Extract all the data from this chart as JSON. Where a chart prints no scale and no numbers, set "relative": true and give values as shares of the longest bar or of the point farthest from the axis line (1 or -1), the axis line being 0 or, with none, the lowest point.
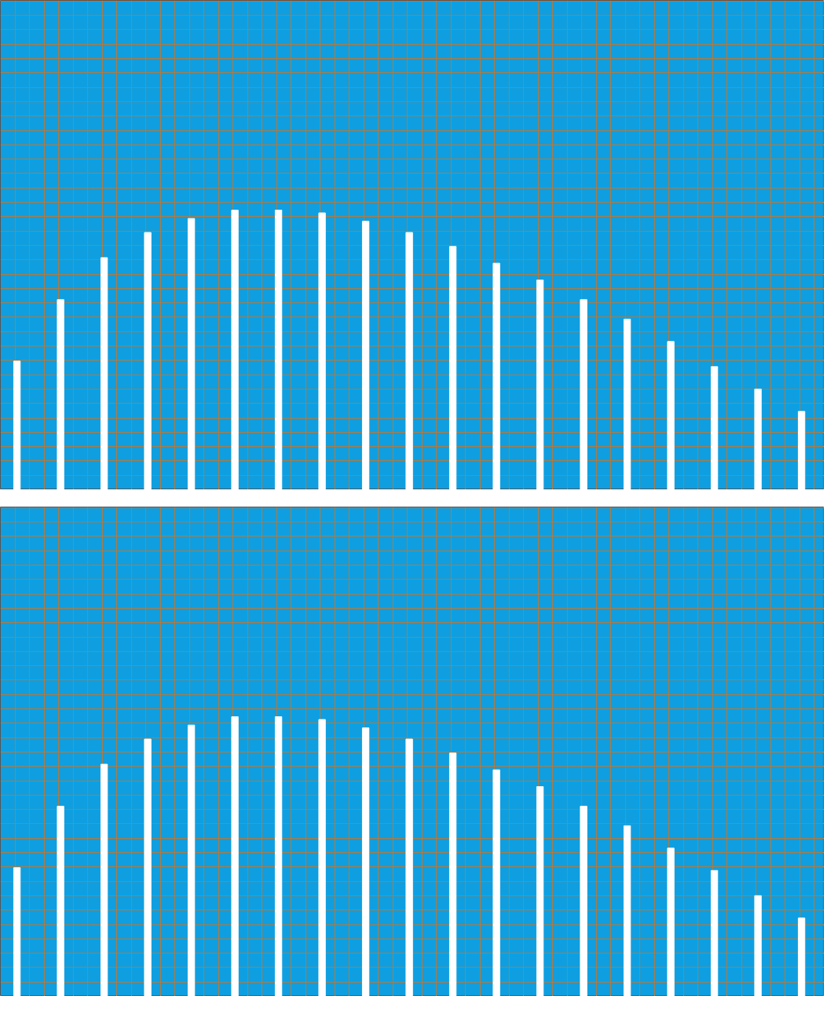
{
  "chart_data": [
    {
      "type": "bar",
      "relative": true,
      "grid": true,
      "categories": [
        null,
        null,
        null,
        null,
        null,
        null,
        null,
        null,
        null,
        null,
        null,
        null,
        null,
        null,
        null,
        null,
        null,
        null,
        null
      ],
      "color": "#ffffff",
      "values": [
        0.46,
        0.68,
        0.83,
        0.92,
        0.97,
        1.0,
        1.0,
        0.99,
        0.96,
        0.92,
        0.87,
        0.81,
        0.75,
        0.68,
        0.61,
        0.53,
        0.44,
        0.36,
        0.28
      ]
    },
    {
      "type": "bar",
      "relative": true,
      "grid": true,
      "categories": [
        null,
        null,
        null,
        null,
        null,
        null,
        null,
        null,
        null,
        null,
        null,
        null,
        null,
        null,
        null,
        null,
        null,
        null,
        null
      ],
      "color": "#ffffff",
      "values": [
        0.46,
        0.68,
        0.83,
        0.92,
        0.97,
        1.0,
        1.0,
        0.99,
        0.96,
        0.92,
        0.87,
        0.81,
        0.75,
        0.68,
        0.61,
        0.53,
        0.45,
        0.36,
        0.28
      ]
    }
  ]
}
